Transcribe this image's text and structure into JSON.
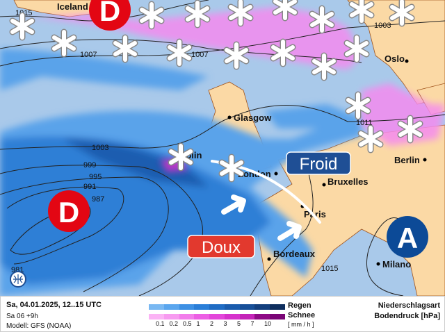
{
  "map": {
    "cities": [
      "Iceland",
      "Oslo",
      "Glasgow",
      "Dublin",
      "London",
      "Bruxelles",
      "Berlin",
      "Paris",
      "Bordeaux",
      "Milano"
    ],
    "isobar_labels": [
      "1015",
      "1007",
      "1007",
      "1003",
      "1011",
      "1003",
      "999",
      "995",
      "991",
      "987",
      "1015",
      "981"
    ],
    "pressure_centers": [
      {
        "label": "D",
        "type": "low",
        "color": "#e30613"
      },
      {
        "label": "D",
        "type": "low",
        "color": "#e30613"
      },
      {
        "label": "A",
        "type": "high",
        "color": "#0c4a97"
      }
    ],
    "air_masses": {
      "cold": "Froid",
      "warm": "Doux",
      "cold_color": "#1f4f95",
      "warm_color": "#e2392e"
    },
    "icons": [
      "snowflake-icon",
      "arrow-icon",
      "globe-icon"
    ]
  },
  "footer": {
    "date": "Sa, 04.01.2025, 12..15 UTC",
    "run": "Sa 06 +9h",
    "model": "Modell: GFS (NOAA)",
    "rain_label": "Regen",
    "snow_label": "Schnee",
    "unit": "[ mm / h ]",
    "ticks": [
      "0.1",
      "0.2",
      "0.5",
      "1",
      "2",
      "3",
      "5",
      "7",
      "10"
    ],
    "title1": "Niederschlagsart",
    "title2": "Bodendruck [hPa]",
    "rain_colors": [
      "#79b8f2",
      "#5aa6ee",
      "#3d90e4",
      "#2a7ed8",
      "#1f6cc4",
      "#1a5cad",
      "#174f98",
      "#133f7e",
      "#0f2e5e"
    ],
    "snow_colors": [
      "#fbb3f5",
      "#f79af0",
      "#f27ceb",
      "#ec5ee4",
      "#e346da",
      "#d632cc",
      "#c424b8",
      "#8e0a86",
      "#7a0576"
    ]
  }
}
